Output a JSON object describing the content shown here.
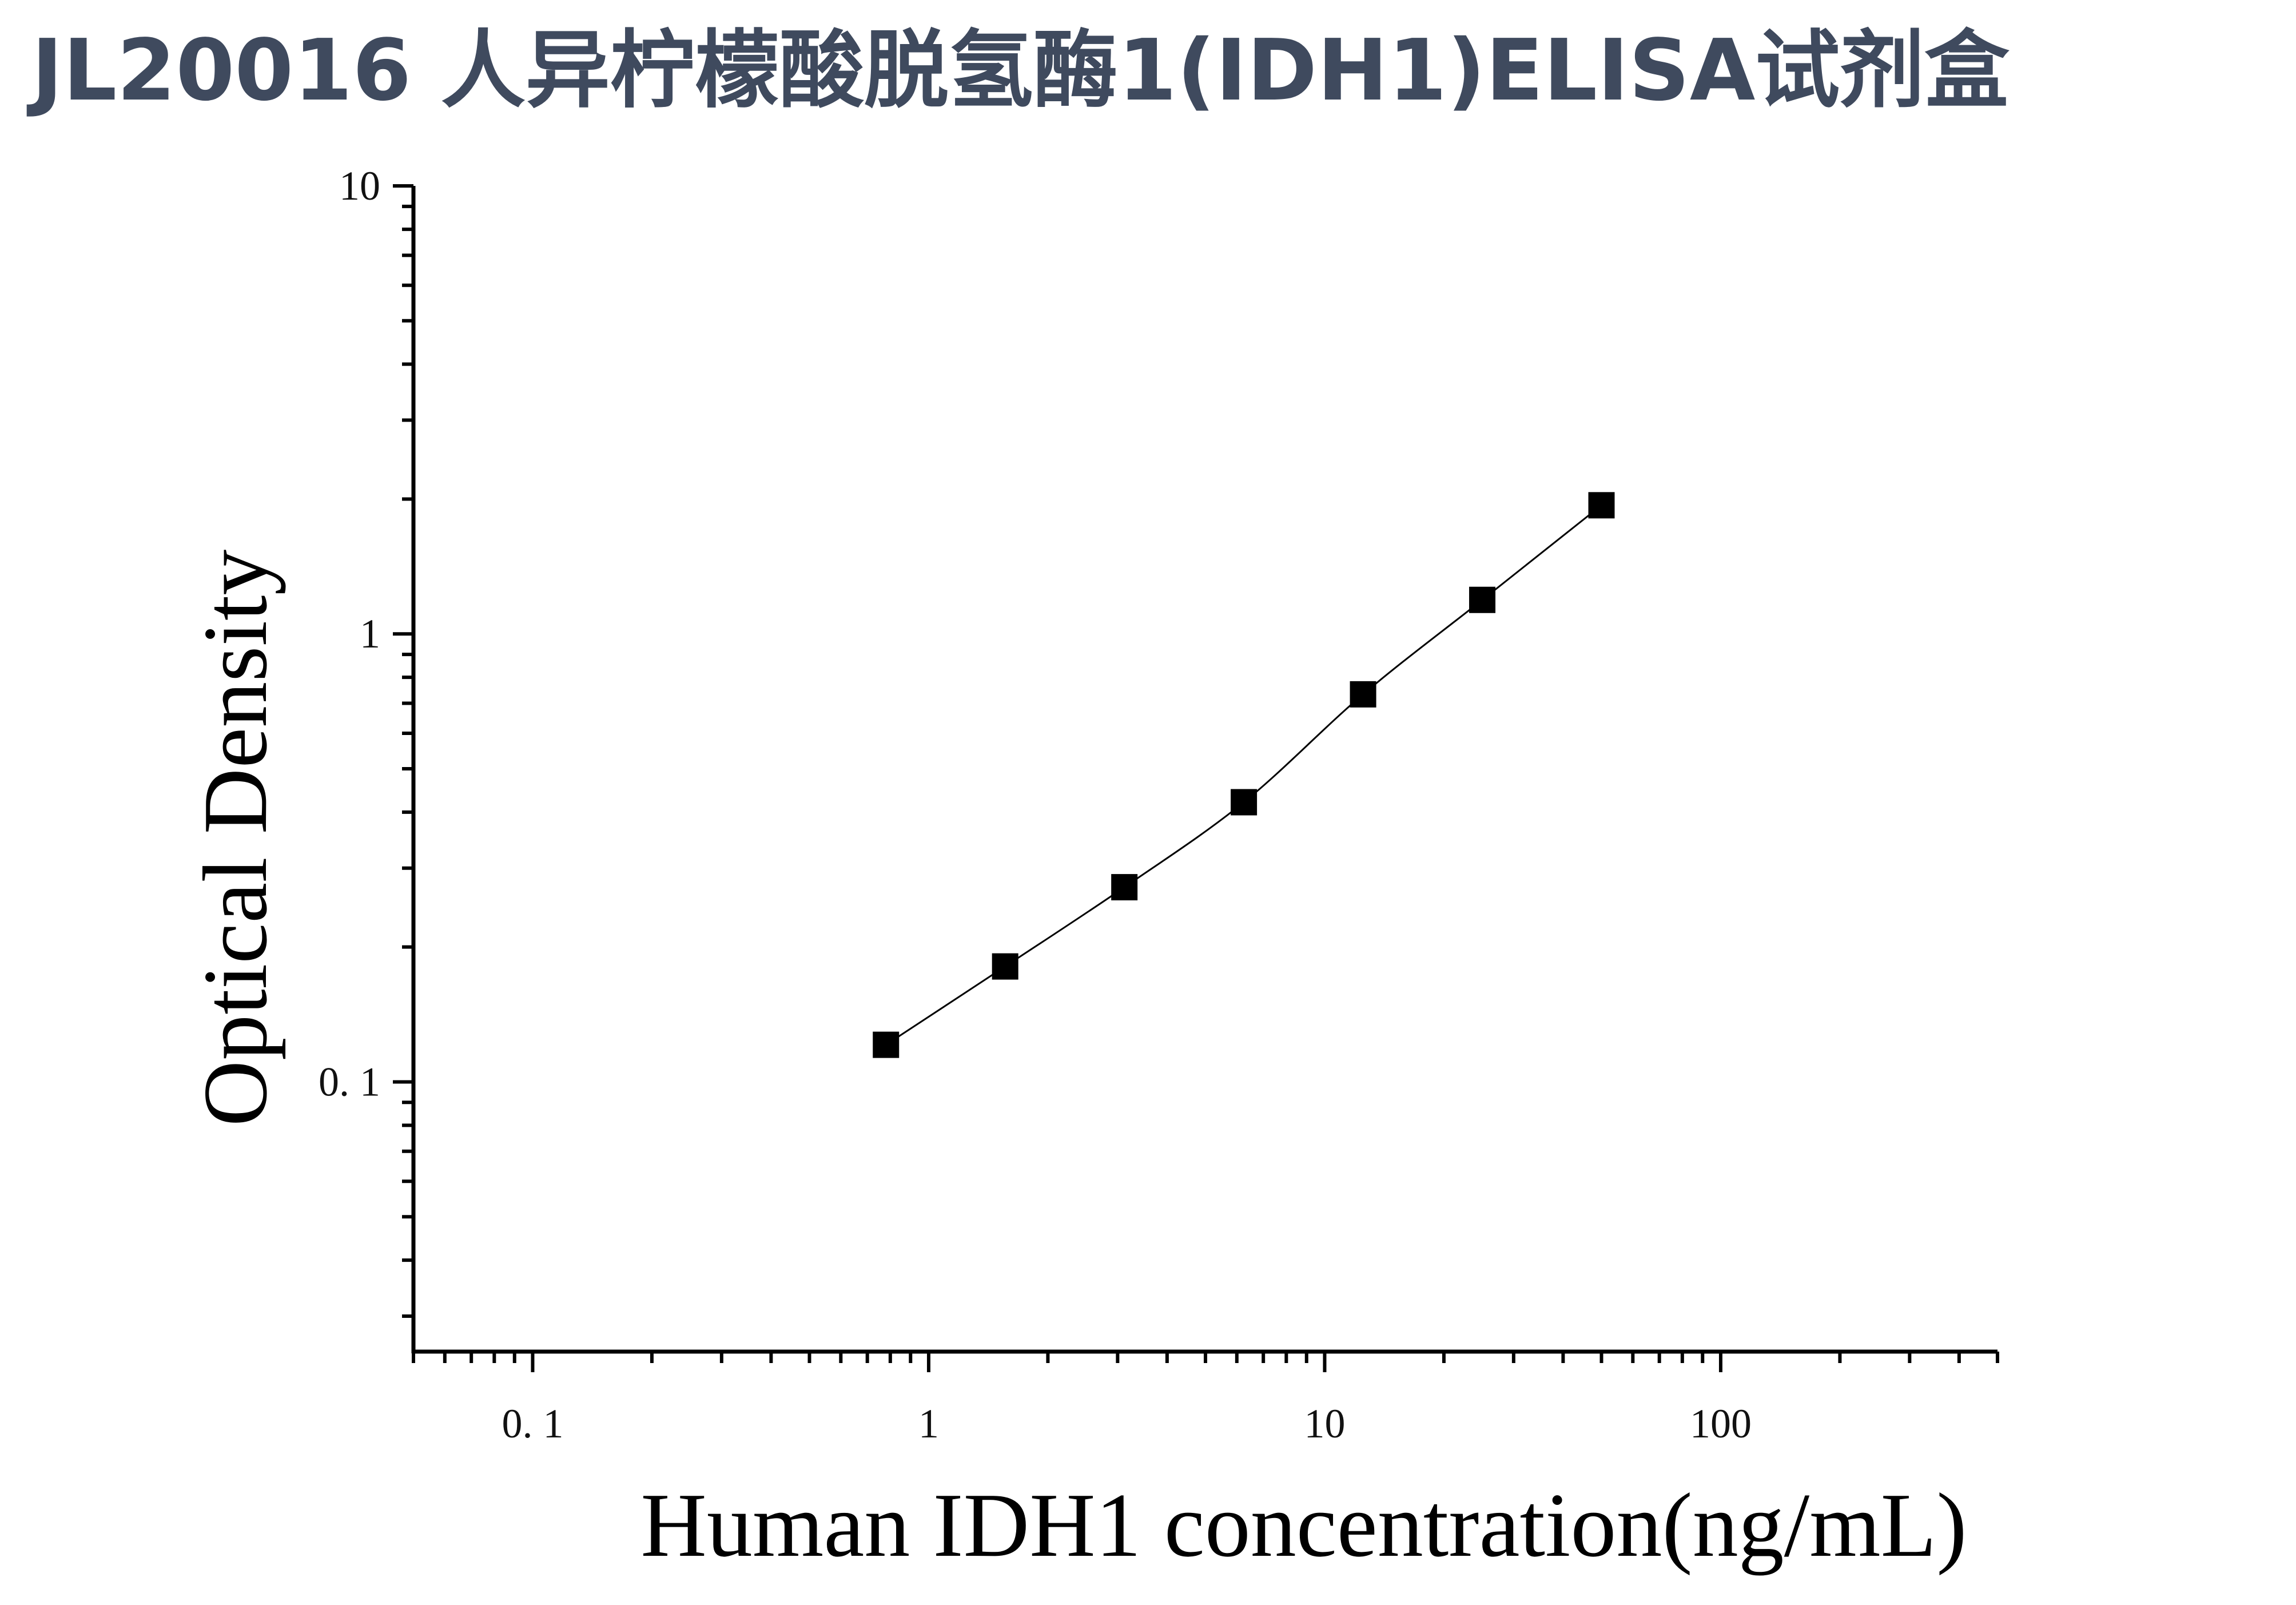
{
  "page": {
    "title": "JL20016 人异柠檬酸脱氢酶1(IDH1)ELISA试剂盒"
  },
  "colors": {
    "title": "#3f4a5e",
    "axis": "#000000",
    "marker": "#000000"
  },
  "chart_data": {
    "type": "scatter",
    "title": "",
    "xlabel": "Human IDH1 concentration(ng/mL)",
    "ylabel": "Optical Density",
    "x_scale": "log",
    "y_scale": "log",
    "xlim": [
      0.05,
      500
    ],
    "ylim": [
      0.025,
      10
    ],
    "x_ticks": [
      {
        "value": 0.1,
        "label": "0. 1"
      },
      {
        "value": 1,
        "label": "1"
      },
      {
        "value": 10,
        "label": "10"
      },
      {
        "value": 100,
        "label": "100"
      }
    ],
    "y_ticks": [
      {
        "value": 0.1,
        "label": "0. 1"
      },
      {
        "value": 1,
        "label": "1"
      },
      {
        "value": 10,
        "label": "10"
      }
    ],
    "grid": false,
    "legend": "none",
    "series": [
      {
        "marker": "square",
        "line": "fitted curve",
        "x": [
          0.78,
          1.56,
          3.12,
          6.25,
          12.5,
          25,
          50
        ],
        "y": [
          0.121,
          0.181,
          0.272,
          0.421,
          0.733,
          1.191,
          1.937
        ]
      }
    ]
  }
}
